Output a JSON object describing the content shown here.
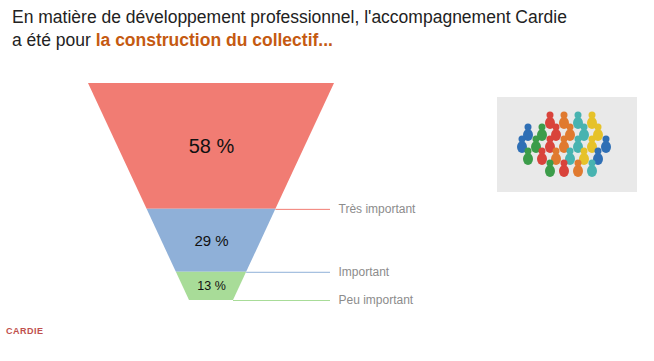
{
  "chart_data": {
    "type": "funnel",
    "title": "En matière de développement professionnel, l'accompagnement Cardie a été pour ",
    "title_emphasis": "la construction du collectif...",
    "categories": [
      "Très important",
      "Important",
      "Peu important"
    ],
    "values": [
      58,
      29,
      13
    ],
    "value_labels": [
      "58 %",
      "29 %",
      "13 %"
    ],
    "colors": [
      "#f17c73",
      "#8fb0d8",
      "#a8dc98"
    ],
    "data_labels": true,
    "logo_text": "CARDIE"
  }
}
